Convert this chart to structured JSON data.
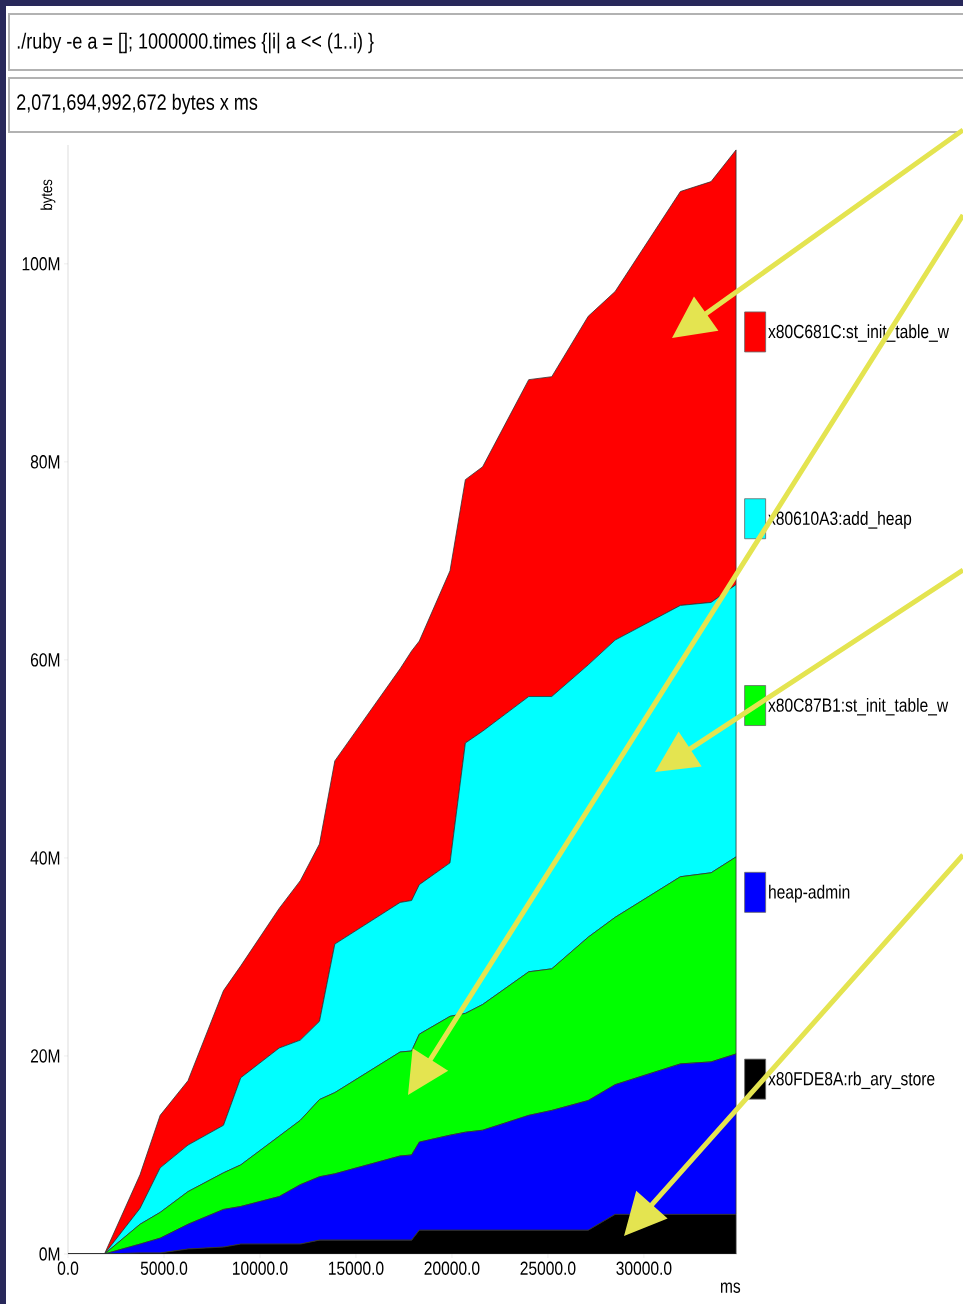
{
  "chart_data": {
    "type": "area",
    "stacked": true,
    "title": "./ruby -e a = []; 1000000.times {|i| a << (1..i) }",
    "subtitle": "2,071,694,992,672 bytes x ms",
    "xlabel": "ms",
    "ylabel": "bytes",
    "x": [
      0,
      1900,
      3750,
      4800,
      6250,
      8100,
      9000,
      11000,
      12100,
      13100,
      13900,
      17300,
      17900,
      18300,
      19900,
      20700,
      21600,
      24000,
      25200,
      27100,
      28500,
      31900,
      33500,
      34800
    ],
    "series": [
      {
        "name": "x80FDE8A:rb_ary_store",
        "color": "#000000",
        "values": [
          0,
          0,
          0.1,
          0.1,
          0.5,
          0.7,
          1.0,
          1.0,
          1.0,
          1.4,
          1.4,
          1.4,
          1.4,
          2.4,
          2.4,
          2.4,
          2.4,
          2.4,
          2.4,
          2.4,
          4.0,
          4.0,
          4.0,
          4.0
        ]
      },
      {
        "name": "heap-admin",
        "color": "#0000ff",
        "values": [
          0,
          0,
          0.9,
          1.5,
          2.5,
          3.8,
          3.8,
          4.8,
          6.0,
          6.4,
          6.7,
          8.5,
          8.6,
          8.9,
          9.6,
          9.9,
          10.1,
          11.6,
          12.1,
          13.1,
          13.1,
          15.2,
          15.4,
          16.2
        ]
      },
      {
        "name": "x80C87B1:st_init_table_w",
        "color": "#00ff00",
        "values": [
          0,
          0,
          2.0,
          2.6,
          3.3,
          3.7,
          4.2,
          6.1,
          6.5,
          7.8,
          8.2,
          10.5,
          10.5,
          10.9,
          12.0,
          12.0,
          12.7,
          14.5,
          14.3,
          16.5,
          16.9,
          18.9,
          19.1,
          19.9
        ]
      },
      {
        "name": "x80610A3:add_heap",
        "color": "#00ffff",
        "values": [
          0,
          0,
          1.6,
          4.5,
          4.7,
          4.8,
          8.8,
          8.9,
          8.1,
          7.9,
          15.0,
          15.1,
          15.2,
          15.1,
          15.5,
          27.3,
          27.6,
          27.8,
          27.5,
          27.5,
          28.0,
          27.4,
          27.3,
          27.5
        ]
      },
      {
        "name": "x80C681C:st_init_table_w",
        "color": "#ff0000",
        "values": [
          0,
          0,
          3.4,
          5.3,
          6.5,
          13.6,
          11.3,
          14.1,
          16.1,
          17.9,
          18.5,
          23.6,
          25.2,
          24.6,
          29.5,
          26.6,
          26.7,
          32.0,
          32.3,
          35.2,
          35.2,
          41.8,
          42.5,
          43.9
        ]
      }
    ],
    "xlim": [
      0,
      34850
    ],
    "ylim": [
      0,
      112
    ],
    "xticks": [
      {
        "value": 0,
        "label": "0.0"
      },
      {
        "value": 5000,
        "label": "5000.0"
      },
      {
        "value": 10000,
        "label": "10000.0"
      },
      {
        "value": 15000,
        "label": "15000.0"
      },
      {
        "value": 20000,
        "label": "20000.0"
      },
      {
        "value": 25000,
        "label": "25000.0"
      },
      {
        "value": 30000,
        "label": "30000.0"
      }
    ],
    "yticks": [
      {
        "value": 0,
        "label": "0M"
      },
      {
        "value": 20,
        "label": "20M"
      },
      {
        "value": 40,
        "label": "40M"
      },
      {
        "value": 60,
        "label": "60M"
      },
      {
        "value": 80,
        "label": "80M"
      },
      {
        "value": 100,
        "label": "100M"
      }
    ],
    "legend": "right"
  }
}
